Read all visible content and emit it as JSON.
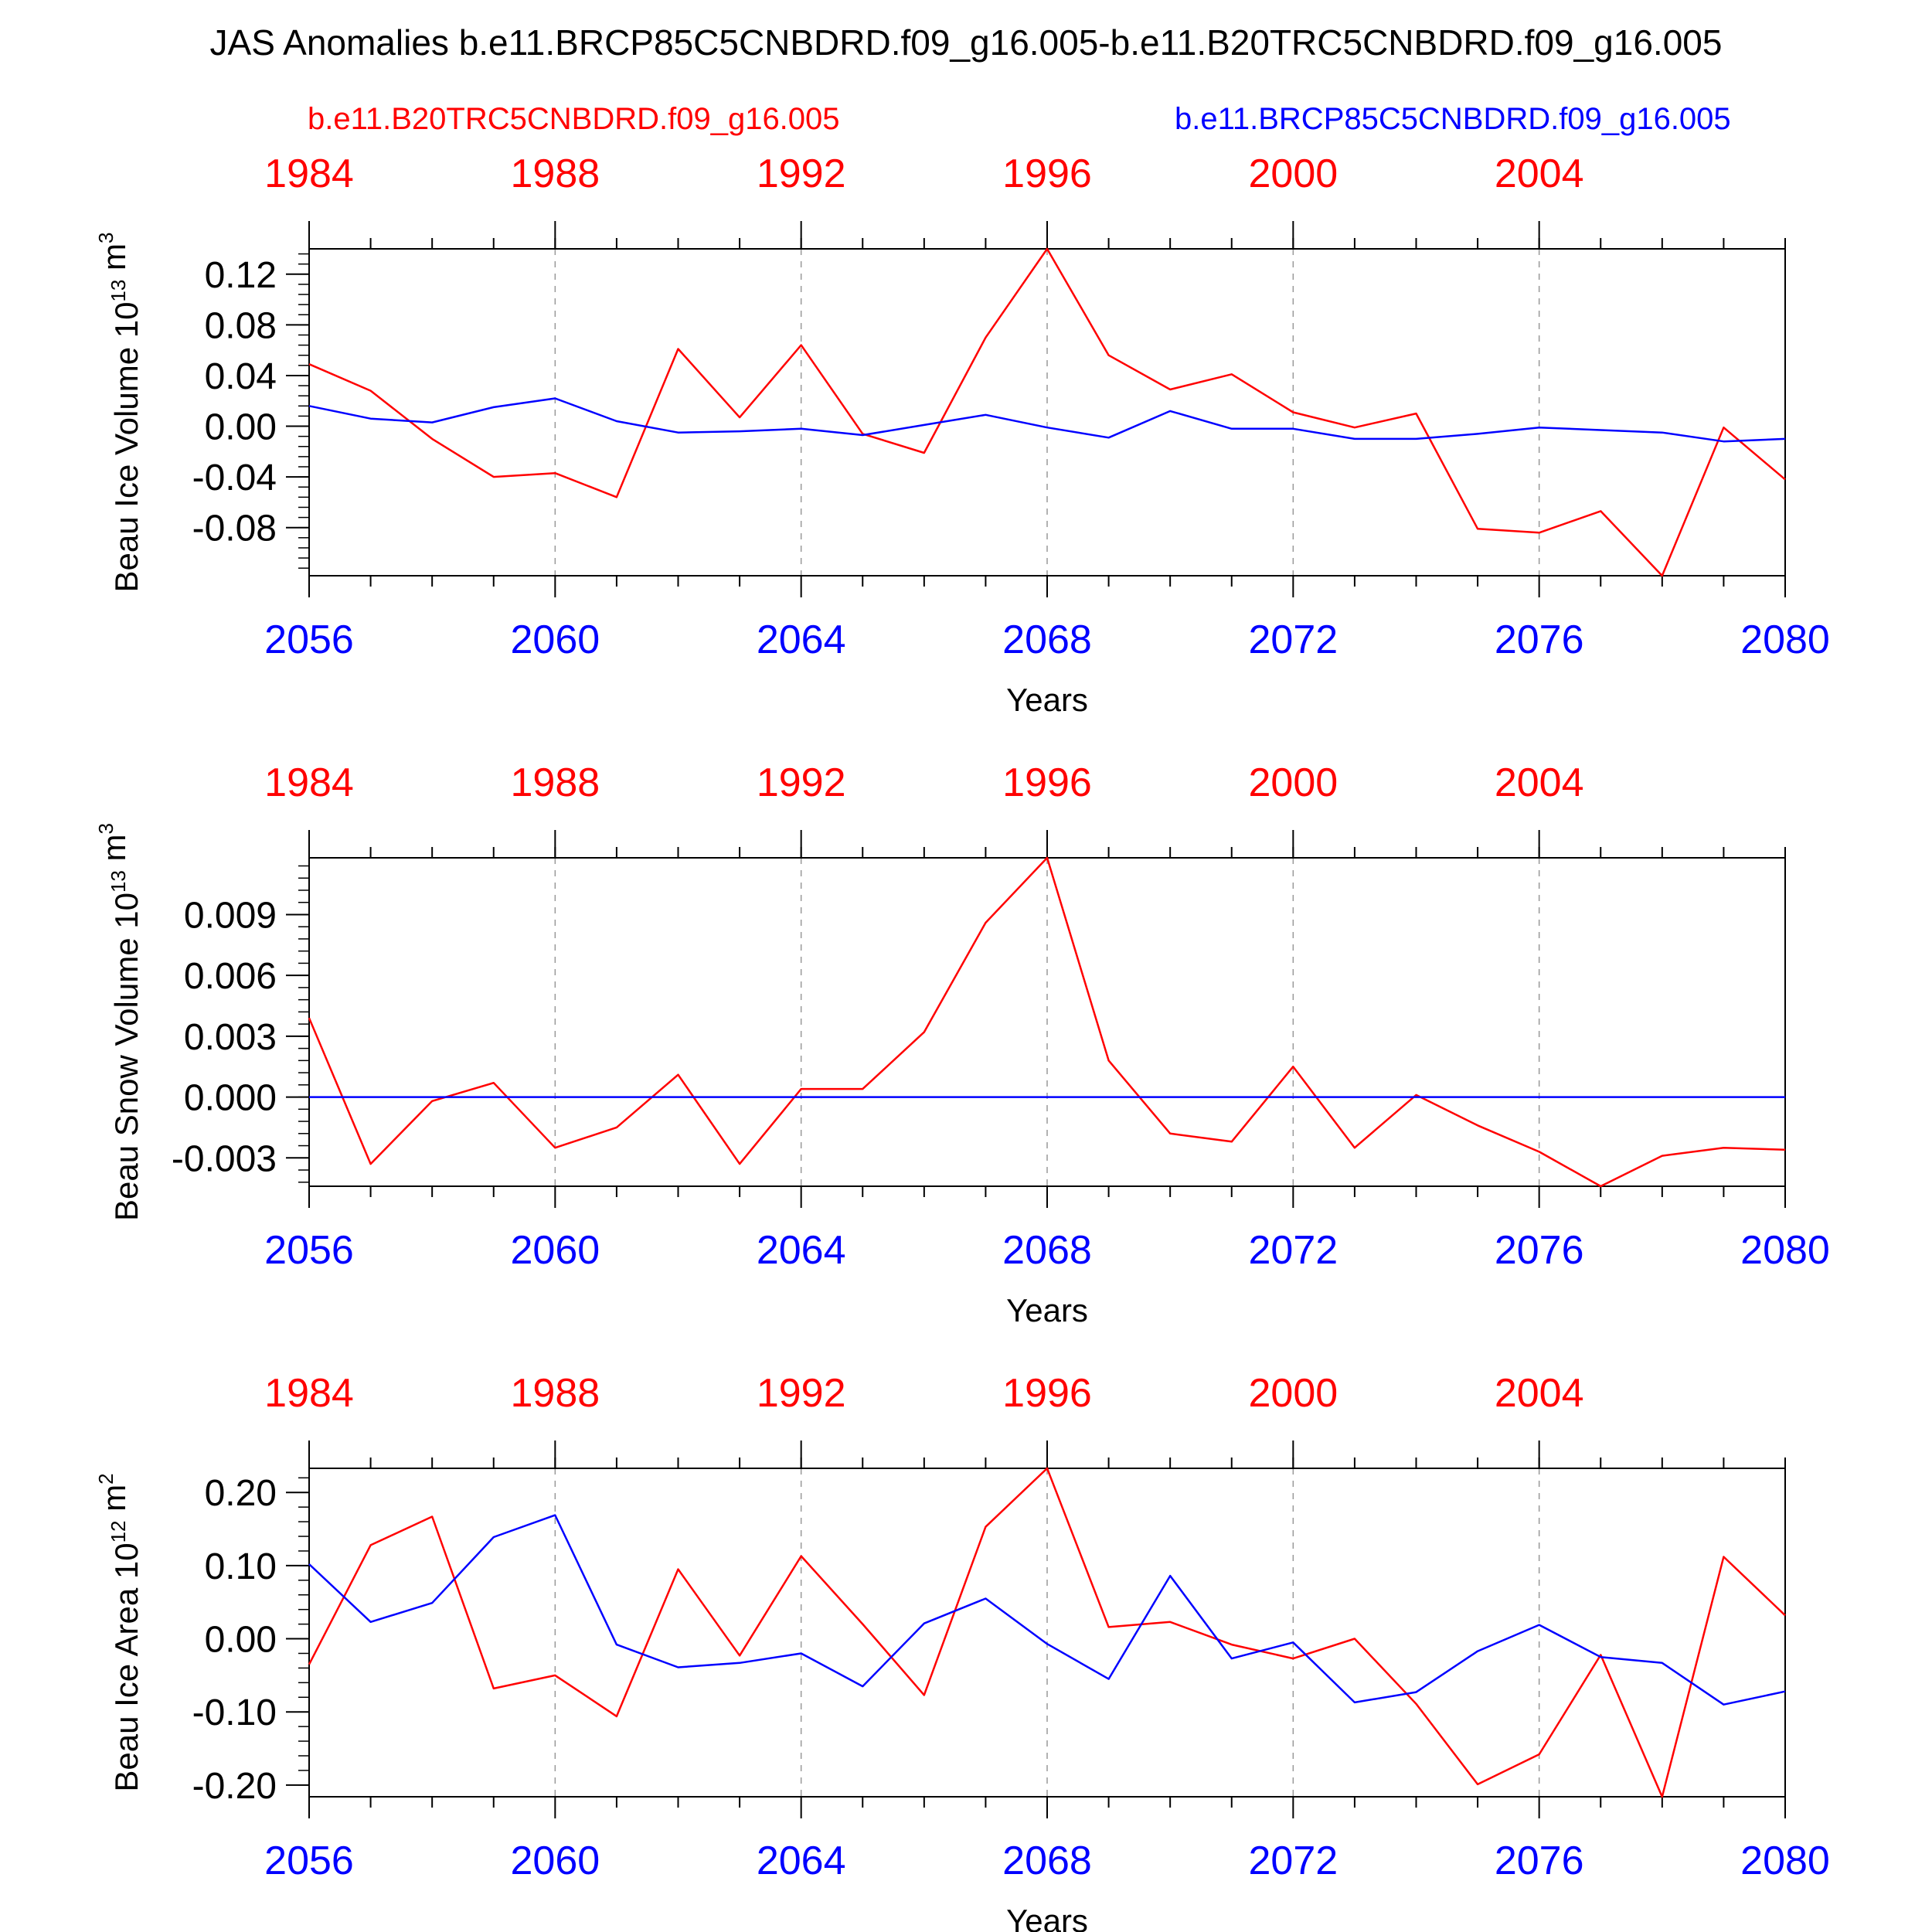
{
  "figure": {
    "title": "JAS Anomalies b.e11.BRCP85C5CNBDRD.f09_g16.005-b.e11.B20TRC5CNBDRD.f09_g16.005",
    "legend_left": "b.e11.B20TRC5CNBDRD.f09_g16.005",
    "legend_right": "b.e11.BRCP85C5CNBDRD.f09_g16.005",
    "colors": {
      "historical": "#ff0000",
      "rcp85": "#0000ff",
      "axis": "#000000",
      "grid": "#999999"
    }
  },
  "chart_data": [
    {
      "type": "line",
      "ylabel": "Beau Ice Volume 10^13 m^3",
      "xlabel": "Years",
      "x": [
        2056,
        2057,
        2058,
        2059,
        2060,
        2061,
        2062,
        2063,
        2064,
        2065,
        2066,
        2067,
        2068,
        2069,
        2070,
        2071,
        2072,
        2073,
        2074,
        2075,
        2076,
        2077,
        2078,
        2079,
        2080
      ],
      "xlim": [
        2056,
        2080
      ],
      "xticks_bottom": [
        2056,
        2060,
        2064,
        2068,
        2072,
        2076,
        2080
      ],
      "xticks_top": [
        1984,
        1988,
        1992,
        1996,
        2000,
        2004
      ],
      "top_axis_offset": -72,
      "ylim": [
        -0.118,
        0.14
      ],
      "yticks": [
        "0.12",
        "0.08",
        "0.04",
        "0.00",
        "-0.04",
        "-0.08"
      ],
      "ytick_values": [
        0.12,
        0.08,
        0.04,
        0.0,
        -0.04,
        -0.08
      ],
      "minor_step": 0.008,
      "series": [
        {
          "name": "b.e11.B20TRC5CNBDRD.f09_g16.005",
          "color": "#ff0000",
          "values": [
            0.049,
            0.028,
            -0.01,
            -0.04,
            -0.037,
            -0.056,
            0.061,
            0.007,
            0.064,
            -0.006,
            -0.021,
            0.07,
            0.14,
            0.056,
            0.029,
            0.041,
            0.011,
            -0.001,
            0.01,
            -0.081,
            -0.084,
            -0.067,
            -0.118,
            -0.001,
            -0.042
          ]
        },
        {
          "name": "b.e11.BRCP85C5CNBDRD.f09_g16.005",
          "color": "#0000ff",
          "values": [
            0.016,
            0.006,
            0.003,
            0.015,
            0.022,
            0.004,
            -0.005,
            -0.004,
            -0.002,
            -0.007,
            0.001,
            0.009,
            -0.001,
            -0.009,
            0.012,
            -0.002,
            -0.002,
            -0.01,
            -0.01,
            -0.006,
            -0.001,
            -0.003,
            -0.005,
            -0.012,
            -0.01
          ]
        }
      ]
    },
    {
      "type": "line",
      "ylabel": "Beau Snow Volume 10^13 m^3",
      "xlabel": "Years",
      "x": [
        2056,
        2057,
        2058,
        2059,
        2060,
        2061,
        2062,
        2063,
        2064,
        2065,
        2066,
        2067,
        2068,
        2069,
        2070,
        2071,
        2072,
        2073,
        2074,
        2075,
        2076,
        2077,
        2078,
        2079,
        2080
      ],
      "xlim": [
        2056,
        2080
      ],
      "xticks_bottom": [
        2056,
        2060,
        2064,
        2068,
        2072,
        2076,
        2080
      ],
      "xticks_top": [
        1984,
        1988,
        1992,
        1996,
        2000,
        2004
      ],
      "top_axis_offset": -72,
      "ylim": [
        -0.0044,
        0.0118
      ],
      "yticks": [
        "0.009",
        "0.006",
        "0.003",
        "0.000",
        "-0.003"
      ],
      "ytick_values": [
        0.009,
        0.006,
        0.003,
        0.0,
        -0.003
      ],
      "minor_step": 0.0006,
      "series": [
        {
          "name": "b.e11.B20TRC5CNBDRD.f09_g16.005",
          "color": "#ff0000",
          "values": [
            0.0039,
            -0.0033,
            -0.0002,
            0.0007,
            -0.0025,
            -0.0015,
            0.0011,
            -0.0033,
            0.0004,
            0.0004,
            0.0032,
            0.0086,
            0.0118,
            0.0018,
            -0.0018,
            -0.0022,
            0.0015,
            -0.0025,
            0.0001,
            -0.0014,
            -0.0027,
            -0.0044,
            -0.0029,
            -0.0025,
            -0.0026
          ]
        },
        {
          "name": "b.e11.BRCP85C5CNBDRD.f09_g16.005",
          "color": "#0000ff",
          "values": [
            0.0,
            0.0,
            0.0,
            0.0,
            0.0,
            0.0,
            0.0,
            0.0,
            0.0,
            0.0,
            0.0,
            0.0,
            0.0,
            0.0,
            0.0,
            0.0,
            0.0,
            0.0,
            0.0,
            0.0,
            0.0,
            0.0,
            0.0,
            0.0,
            0.0
          ]
        }
      ]
    },
    {
      "type": "line",
      "ylabel": "Beau Ice Area 10^12 m^2",
      "xlabel": "Years",
      "x": [
        2056,
        2057,
        2058,
        2059,
        2060,
        2061,
        2062,
        2063,
        2064,
        2065,
        2066,
        2067,
        2068,
        2069,
        2070,
        2071,
        2072,
        2073,
        2074,
        2075,
        2076,
        2077,
        2078,
        2079,
        2080
      ],
      "xlim": [
        2056,
        2080
      ],
      "xticks_bottom": [
        2056,
        2060,
        2064,
        2068,
        2072,
        2076,
        2080
      ],
      "xticks_top": [
        1984,
        1988,
        1992,
        1996,
        2000,
        2004
      ],
      "top_axis_offset": -72,
      "ylim": [
        -0.216,
        0.233
      ],
      "yticks": [
        "0.20",
        "0.10",
        "0.00",
        "-0.10",
        "-0.20"
      ],
      "ytick_values": [
        0.2,
        0.1,
        0.0,
        -0.1,
        -0.2
      ],
      "minor_step": 0.02,
      "series": [
        {
          "name": "b.e11.B20TRC5CNBDRD.f09_g16.005",
          "color": "#ff0000",
          "values": [
            -0.035,
            0.128,
            0.167,
            -0.068,
            -0.05,
            -0.106,
            0.095,
            -0.023,
            0.113,
            0.02,
            -0.077,
            0.153,
            0.233,
            0.016,
            0.023,
            -0.008,
            -0.027,
            0.0,
            -0.089,
            -0.199,
            -0.158,
            -0.022,
            -0.216,
            0.112,
            0.032
          ]
        },
        {
          "name": "b.e11.BRCP85C5CNBDRD.f09_g16.005",
          "color": "#0000ff",
          "values": [
            0.102,
            0.023,
            0.049,
            0.139,
            0.169,
            -0.008,
            -0.039,
            -0.033,
            -0.02,
            -0.065,
            0.021,
            0.055,
            -0.007,
            -0.055,
            0.086,
            -0.027,
            -0.005,
            -0.087,
            -0.073,
            -0.017,
            0.019,
            -0.025,
            -0.033,
            -0.09,
            -0.072
          ]
        }
      ]
    }
  ]
}
